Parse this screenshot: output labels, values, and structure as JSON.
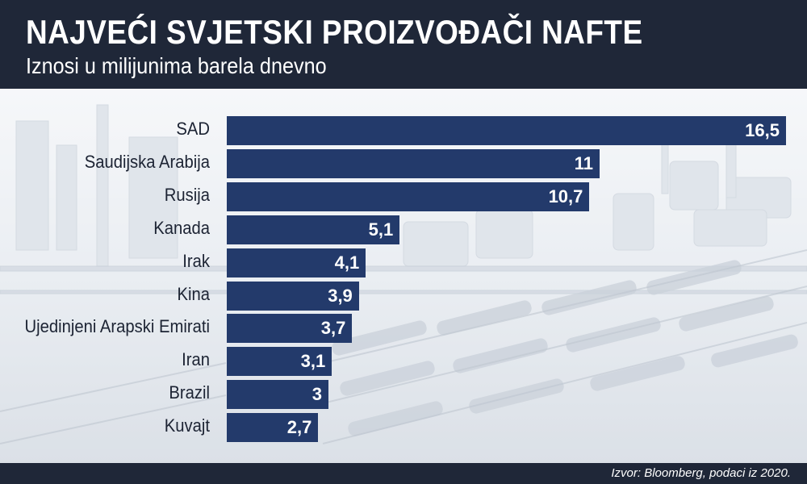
{
  "header": {
    "title": "NAJVEĆI SVJETSKI PROIZVOĐAČI NAFTE",
    "subtitle": "Iznosi u milijunima barela dnevno"
  },
  "footer": {
    "source": "Izvor: Bloomberg, podaci iz 2020."
  },
  "colors": {
    "header_bg": "#1f2738",
    "bar": "#233a6b",
    "background": "#e9edf2"
  },
  "chart_data": {
    "type": "bar",
    "orientation": "horizontal",
    "title": "NAJVEĆI SVJETSKI PROIZVOĐAČI NAFTE",
    "subtitle": "Iznosi u milijunima barela dnevno",
    "categories": [
      "SAD",
      "Saudijska Arabija",
      "Rusija",
      "Kanada",
      "Irak",
      "Kina",
      "Ujedinjeni Arapski Emirati",
      "Iran",
      "Brazil",
      "Kuvajt"
    ],
    "values": [
      16.5,
      11,
      10.7,
      5.1,
      4.1,
      3.9,
      3.7,
      3.1,
      3,
      2.7
    ],
    "value_labels": [
      "16,5",
      "11",
      "10,7",
      "5,1",
      "4,1",
      "3,9",
      "3,7",
      "3,1",
      "3",
      "2,7"
    ],
    "xlim": [
      0,
      16.5
    ],
    "grid": false,
    "legend": "none"
  }
}
